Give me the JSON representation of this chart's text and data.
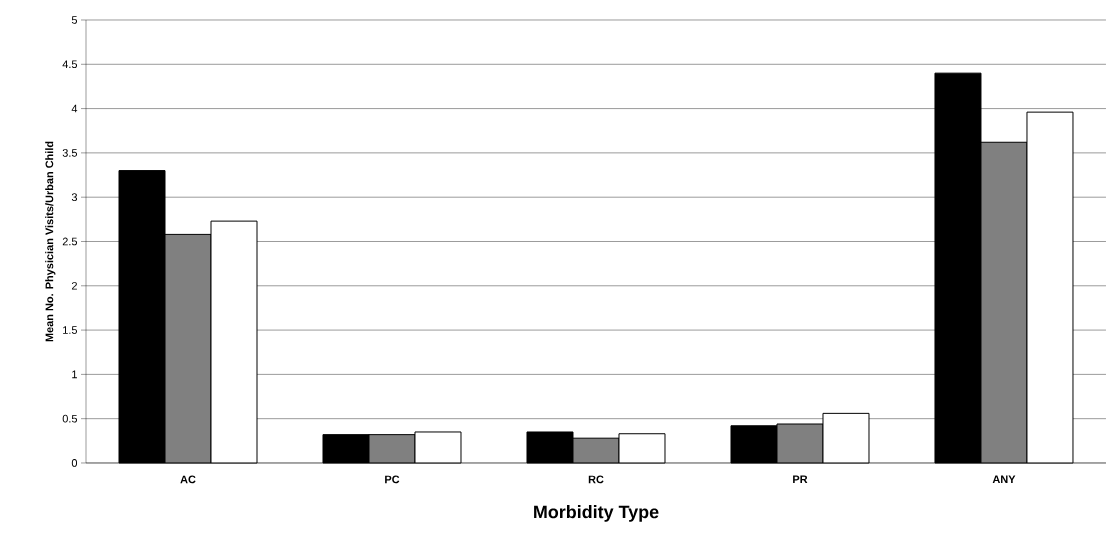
{
  "chart_data": {
    "type": "bar",
    "xlabel": "Morbidity Type",
    "ylabel": "Mean No. Physician Visits/Urban Child",
    "categories": [
      "AC",
      "PC",
      "RC",
      "PR",
      "ANY"
    ],
    "series": [
      {
        "color": "#000000",
        "values": [
          3.3,
          0.32,
          0.35,
          0.42,
          4.4
        ]
      },
      {
        "color": "#808080",
        "values": [
          2.58,
          0.32,
          0.28,
          0.44,
          3.62
        ]
      },
      {
        "color": "#ffffff",
        "values": [
          2.73,
          0.35,
          0.33,
          0.56,
          3.96
        ]
      }
    ],
    "ylim": [
      0,
      5
    ],
    "yticks": [
      0,
      0.5,
      1,
      1.5,
      2,
      2.5,
      3,
      3.5,
      4,
      4.5,
      5
    ],
    "grid": "y"
  }
}
